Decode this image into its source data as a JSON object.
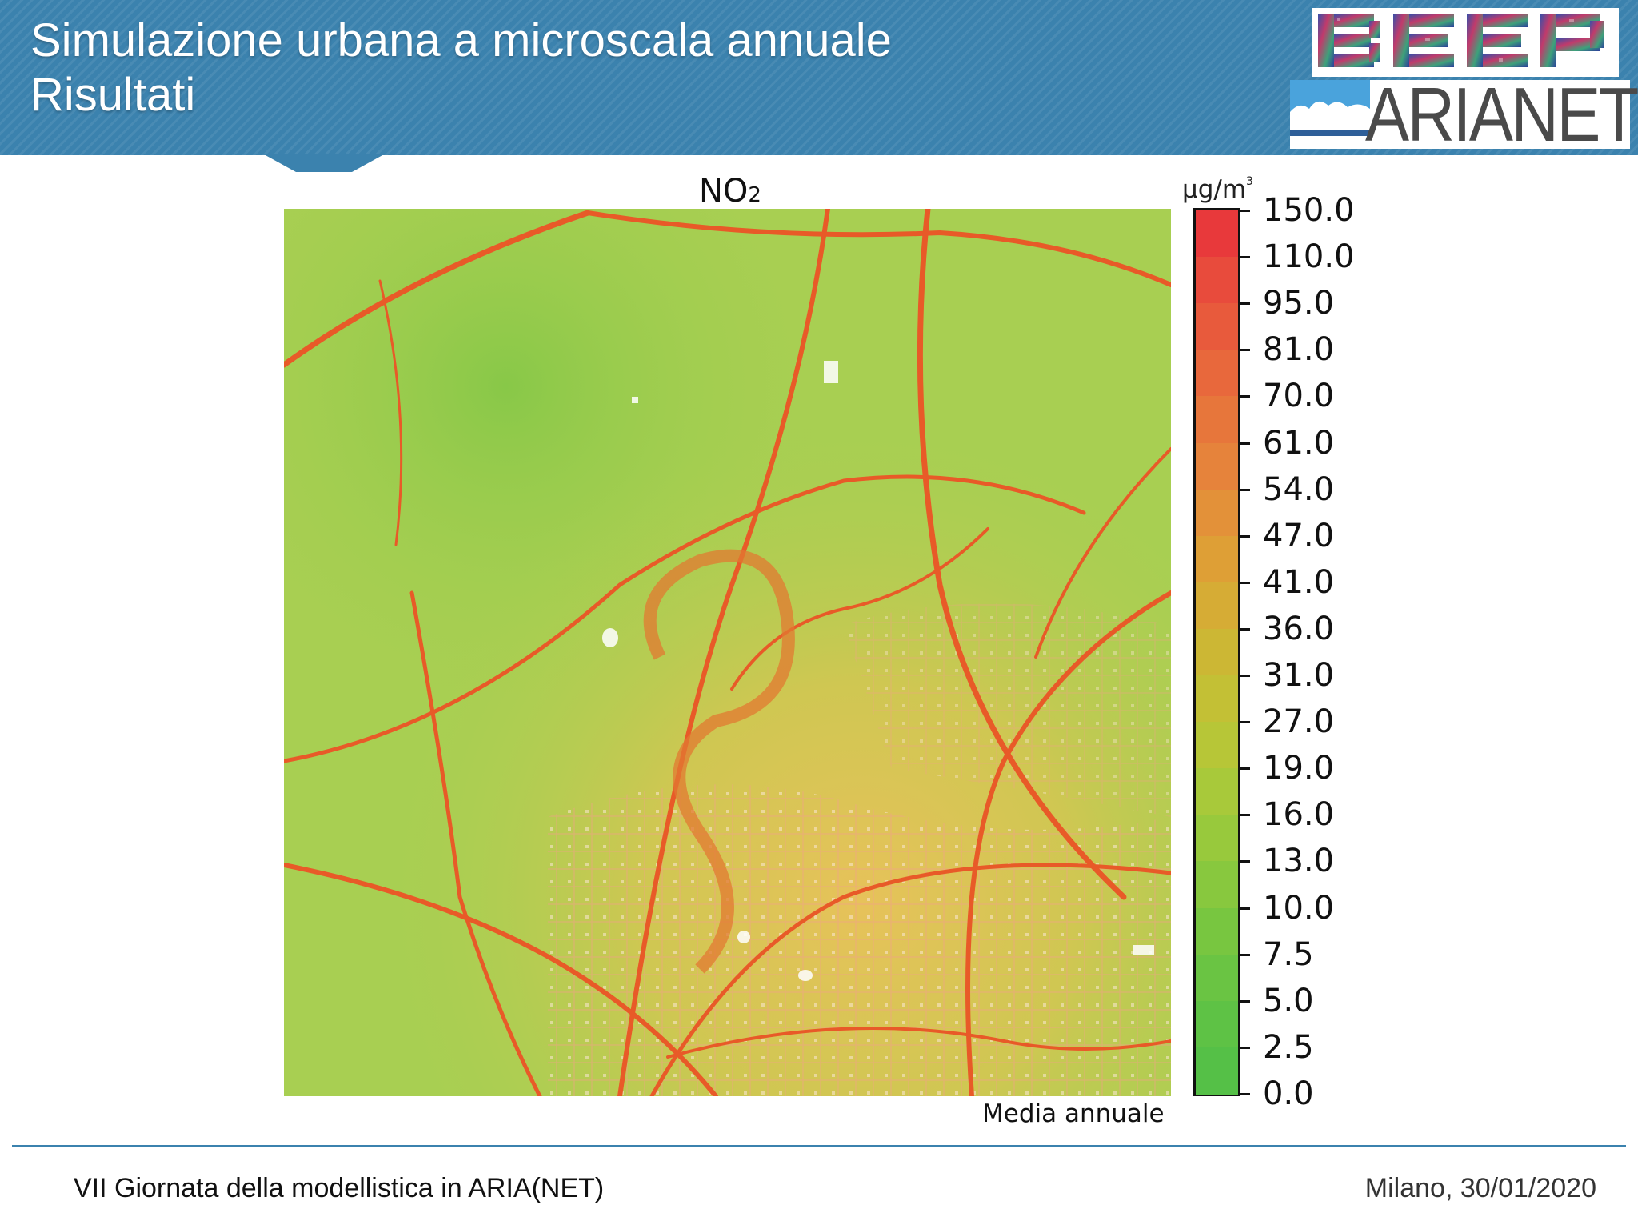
{
  "header": {
    "title_line1": "Simulazione urbana a microscala annuale",
    "title_line2": "Risultati",
    "color": "#3b82ae"
  },
  "logos": {
    "beep": "BEEP",
    "arianet": "ARIANET"
  },
  "map": {
    "title_main": "NO",
    "title_sub": "2",
    "caption": "Media annuale",
    "background_color": "#a8cf52",
    "road_color": "#e85a28"
  },
  "colorbar": {
    "unit_main": "µg/m",
    "unit_sup": "3",
    "levels": [
      "150.0",
      "110.0",
      "95.0",
      "81.0",
      "70.0",
      "61.0",
      "54.0",
      "47.0",
      "41.0",
      "36.0",
      "31.0",
      "27.0",
      "19.0",
      "16.0",
      "13.0",
      "10.0",
      "7.5",
      "5.0",
      "2.5",
      "0.0"
    ],
    "colors_top_to_bottom": [
      "#e8393b",
      "#e84b3c",
      "#e85a3c",
      "#e8683c",
      "#e7763b",
      "#e6833b",
      "#e39139",
      "#de9f36",
      "#d6ac35",
      "#ccb734",
      "#c3c035",
      "#b7c637",
      "#a8c93a",
      "#98c93c",
      "#88c83e",
      "#78c640",
      "#6ac443",
      "#5ec245",
      "#55c047"
    ]
  },
  "footer": {
    "left": "VII Giornata della modellistica in ARIA(NET)",
    "right": "Milano, 30/01/2020"
  }
}
